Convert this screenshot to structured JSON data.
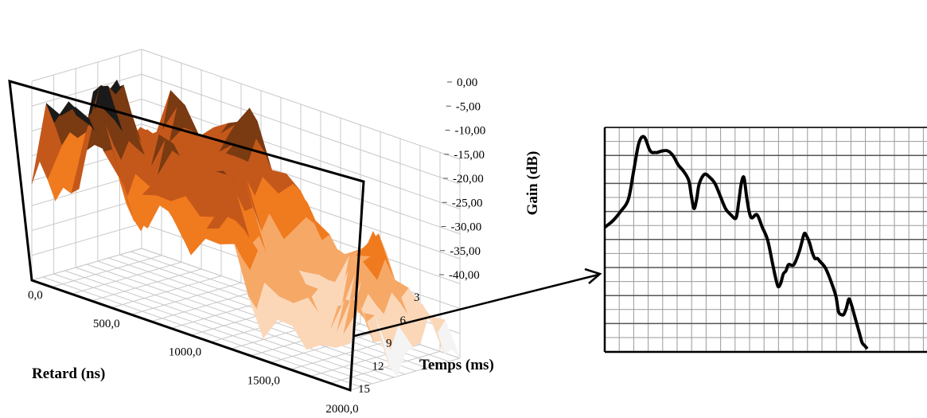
{
  "chart_data": [
    {
      "type": "surface",
      "xlabel": "Retard (ns)",
      "ylabel": "Temps (ms)",
      "zlabel": "Gain  (dB)",
      "x_ticks": [
        "0,0",
        "500,0",
        "1000,0",
        "1500,0",
        "2000,0"
      ],
      "y_ticks": [
        "3",
        "6",
        "9",
        "12",
        "15"
      ],
      "z_ticks": [
        "0,00",
        "-5,00",
        "-10,00",
        "-15,00",
        "-20,00",
        "-25,00",
        "-30,00",
        "-35,00",
        "-40,00"
      ],
      "xlim": [
        0,
        2000
      ],
      "ylim": [
        0,
        15
      ],
      "zlim": [
        -40,
        0
      ],
      "grid": true,
      "colors": [
        "#1a1a1a",
        "#7a3a12",
        "#c4581b",
        "#f07a1e",
        "#f6a867",
        "#fbd7b8",
        "#f4f4f4"
      ]
    },
    {
      "type": "line",
      "grid": true,
      "series": [
        {
          "x": [
            0,
            3,
            6,
            9,
            11,
            13,
            15,
            17,
            18,
            19,
            20,
            22,
            24,
            26,
            28,
            30,
            32,
            33,
            34,
            35,
            36,
            38,
            40,
            42,
            44,
            46,
            48,
            50,
            51,
            52,
            53,
            54,
            55,
            56,
            58,
            60,
            62,
            64,
            65,
            66,
            67,
            68,
            69,
            70,
            72,
            74,
            75,
            76,
            77,
            78,
            79,
            80,
            81,
            82,
            84,
            86,
            88,
            89,
            90,
            91,
            92,
            93,
            94,
            95,
            96,
            97,
            98,
            99,
            100
          ],
          "y": [
            -30,
            -28,
            -25,
            -21,
            -12,
            -3,
            -1,
            -5,
            -6,
            -6,
            -6,
            -5.5,
            -5.5,
            -7,
            -10,
            -12,
            -15,
            -20,
            -24,
            -21,
            -16,
            -13,
            -14,
            -16,
            -20,
            -24,
            -26,
            -27,
            -22,
            -16,
            -14,
            -20,
            -25,
            -27,
            -26,
            -30,
            -34,
            -42,
            -46,
            -49,
            -48,
            -45,
            -44,
            -42,
            -42,
            -38,
            -35,
            -32,
            -33,
            -35,
            -38,
            -40,
            -40,
            -41,
            -43,
            -47,
            -52,
            -57,
            -58,
            -58,
            -56,
            -53,
            -55,
            -58,
            -61,
            -64,
            -67,
            -68,
            -69
          ]
        }
      ],
      "xlim": [
        0,
        100
      ],
      "ylim": [
        -70,
        0
      ]
    }
  ]
}
